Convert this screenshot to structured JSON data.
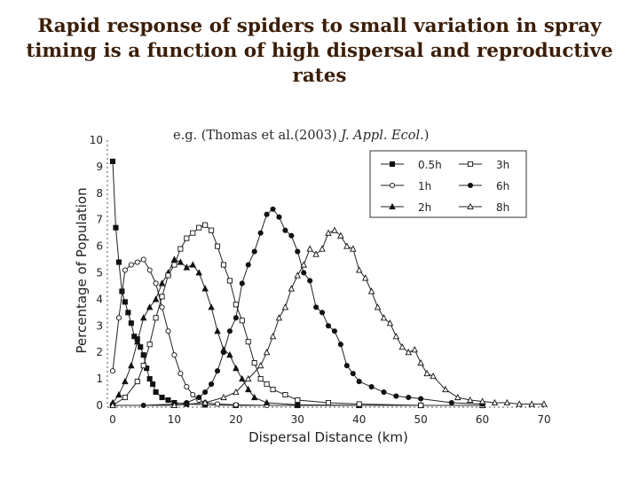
{
  "slide": {
    "title_lines": [
      "Rapid response of spiders to small variation in spray",
      "timing is a function of high dispersal and reproductive",
      "rates"
    ],
    "citation_prefix": "e.g. (Thomas et al.(2003) ",
    "citation_journal": "J. Appl. Ecol.",
    "citation_suffix": ")"
  },
  "chart_data": {
    "type": "line",
    "title": "",
    "xlabel": "Dispersal Distance (km)",
    "ylabel": "Percentage of Population",
    "xlim": [
      0,
      70
    ],
    "ylim": [
      0,
      10
    ],
    "xticks": [
      0,
      10,
      20,
      30,
      40,
      50,
      60,
      70
    ],
    "yticks": [
      0,
      1,
      2,
      3,
      4,
      5,
      6,
      7,
      8,
      9,
      10
    ],
    "grid": false,
    "legend_position": "top-right",
    "series": [
      {
        "name": "0.5h",
        "marker": "filled-square",
        "x": [
          0,
          0.5,
          1,
          1.5,
          2,
          2.5,
          3,
          3.5,
          4,
          4.5,
          5,
          5.5,
          6,
          6.5,
          7,
          8,
          9,
          10,
          12,
          15,
          20,
          30,
          40,
          50,
          60
        ],
        "y": [
          9.2,
          6.7,
          5.4,
          4.3,
          3.9,
          3.5,
          3.1,
          2.6,
          2.5,
          2.2,
          1.9,
          1.4,
          1.0,
          0.8,
          0.5,
          0.3,
          0.2,
          0.1,
          0.05,
          0.02,
          0,
          0,
          0,
          0,
          0
        ]
      },
      {
        "name": "1h",
        "marker": "open-circle",
        "x": [
          0,
          1,
          2,
          3,
          4,
          5,
          6,
          7,
          8,
          9,
          10,
          11,
          12,
          13,
          14,
          15,
          17,
          20,
          25,
          30,
          40,
          50,
          60
        ],
        "y": [
          1.3,
          3.3,
          5.1,
          5.3,
          5.4,
          5.5,
          5.1,
          4.6,
          3.7,
          2.8,
          1.9,
          1.2,
          0.7,
          0.4,
          0.2,
          0.1,
          0.05,
          0.02,
          0,
          0,
          0,
          0,
          0
        ]
      },
      {
        "name": "2h",
        "marker": "filled-triangle",
        "x": [
          0,
          1,
          2,
          3,
          4,
          5,
          6,
          7,
          8,
          9,
          10,
          11,
          12,
          13,
          14,
          15,
          16,
          17,
          18,
          19,
          20,
          21,
          22,
          23,
          25,
          30,
          40,
          50,
          60
        ],
        "y": [
          0.1,
          0.4,
          0.9,
          1.5,
          2.4,
          3.3,
          3.7,
          4.0,
          4.6,
          5.0,
          5.5,
          5.4,
          5.2,
          5.3,
          5.0,
          4.4,
          3.7,
          2.8,
          2.1,
          1.9,
          1.4,
          1.0,
          0.6,
          0.3,
          0.1,
          0.02,
          0,
          0,
          0
        ]
      },
      {
        "name": "3h",
        "marker": "open-square",
        "x": [
          0,
          2,
          4,
          5,
          6,
          7,
          8,
          9,
          10,
          11,
          12,
          13,
          14,
          15,
          16,
          17,
          18,
          19,
          20,
          21,
          22,
          23,
          24,
          25,
          26,
          28,
          30,
          35,
          40,
          50,
          60
        ],
        "y": [
          0,
          0.3,
          0.9,
          1.5,
          2.3,
          3.3,
          4.1,
          4.9,
          5.3,
          5.9,
          6.3,
          6.5,
          6.7,
          6.8,
          6.6,
          6.0,
          5.3,
          4.7,
          3.8,
          3.2,
          2.4,
          1.6,
          1.0,
          0.8,
          0.6,
          0.4,
          0.2,
          0.1,
          0.05,
          0,
          0
        ]
      },
      {
        "name": "6h",
        "marker": "filled-circle",
        "x": [
          0,
          5,
          10,
          12,
          14,
          15,
          16,
          17,
          18,
          19,
          20,
          21,
          22,
          23,
          24,
          25,
          26,
          27,
          28,
          29,
          30,
          31,
          32,
          33,
          34,
          35,
          36,
          37,
          38,
          39,
          40,
          42,
          44,
          46,
          48,
          50,
          55,
          60
        ],
        "y": [
          0,
          0,
          0.05,
          0.1,
          0.3,
          0.5,
          0.8,
          1.3,
          2.0,
          2.8,
          3.3,
          4.6,
          5.3,
          5.8,
          6.5,
          7.2,
          7.4,
          7.1,
          6.6,
          6.4,
          5.8,
          5.0,
          4.7,
          3.7,
          3.5,
          3.0,
          2.8,
          2.3,
          1.5,
          1.2,
          0.9,
          0.7,
          0.5,
          0.35,
          0.3,
          0.25,
          0.1,
          0.05
        ]
      },
      {
        "name": "8h",
        "marker": "open-triangle",
        "x": [
          0,
          10,
          15,
          18,
          20,
          22,
          24,
          25,
          26,
          27,
          28,
          29,
          30,
          31,
          32,
          33,
          34,
          35,
          36,
          37,
          38,
          39,
          40,
          41,
          42,
          43,
          44,
          45,
          46,
          47,
          48,
          49,
          50,
          51,
          52,
          54,
          56,
          58,
          60,
          62,
          64,
          66,
          68,
          70
        ],
        "y": [
          0,
          0,
          0.1,
          0.3,
          0.5,
          1.0,
          1.5,
          2.0,
          2.6,
          3.3,
          3.7,
          4.4,
          4.9,
          5.3,
          5.9,
          5.7,
          5.9,
          6.5,
          6.6,
          6.4,
          6.0,
          5.9,
          5.1,
          4.8,
          4.3,
          3.7,
          3.3,
          3.1,
          2.6,
          2.2,
          2.0,
          2.1,
          1.6,
          1.2,
          1.1,
          0.6,
          0.3,
          0.2,
          0.15,
          0.1,
          0.1,
          0.05,
          0.05,
          0.05
        ]
      }
    ]
  }
}
